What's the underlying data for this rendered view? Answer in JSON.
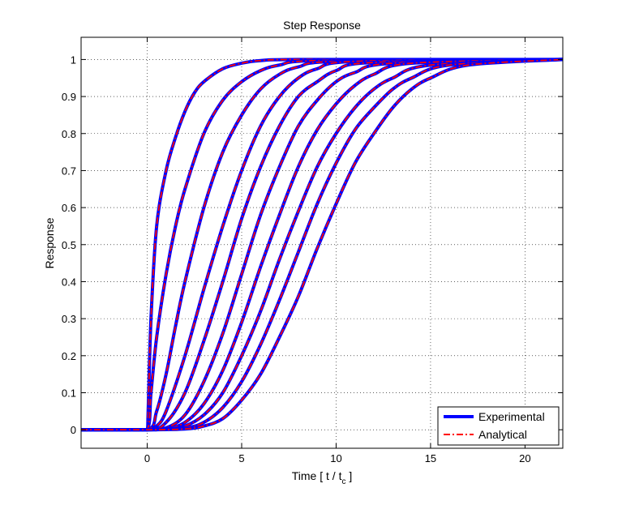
{
  "chart_data": {
    "type": "line",
    "title": "Step Response",
    "xlabel": "Time  [ t / t",
    "xlabel_sub": "c",
    "xlabel_end": " ]",
    "ylabel": "Response",
    "xlim": [
      -3.5,
      22
    ],
    "ylim": [
      -0.05,
      1.06
    ],
    "xticks": [
      0,
      5,
      10,
      15,
      20
    ],
    "yticks": [
      0,
      0.1,
      0.2,
      0.3,
      0.4,
      0.5,
      0.6,
      0.7,
      0.8,
      0.9,
      1
    ],
    "grid": true,
    "legend_position": "bottom-right",
    "colors": {
      "experimental": "#0000ff",
      "analytical": "#ff0000"
    },
    "series": [
      {
        "name": "Experimental",
        "style": "solid"
      },
      {
        "name": "Analytical",
        "style": "dash-dot"
      }
    ],
    "curves": [
      {
        "x": [
          -3.5,
          0,
          0.05,
          0.2,
          0.5,
          1,
          1.5,
          2,
          2.5,
          3,
          4,
          5,
          6,
          8,
          22
        ],
        "y": [
          0,
          0,
          0.05,
          0.3,
          0.55,
          0.7,
          0.79,
          0.86,
          0.91,
          0.94,
          0.975,
          0.99,
          0.997,
          1,
          1
        ]
      },
      {
        "x": [
          -3.5,
          0,
          0.2,
          0.5,
          1,
          1.5,
          2,
          3,
          4,
          5,
          6,
          7,
          9,
          22
        ],
        "y": [
          0,
          0,
          0.1,
          0.25,
          0.42,
          0.55,
          0.65,
          0.8,
          0.89,
          0.94,
          0.97,
          0.985,
          0.997,
          1
        ]
      },
      {
        "x": [
          -3.5,
          0,
          0.5,
          1,
          1.5,
          2,
          3,
          4,
          5,
          6,
          7,
          8,
          10,
          22
        ],
        "y": [
          0,
          0,
          0.05,
          0.15,
          0.28,
          0.4,
          0.6,
          0.75,
          0.85,
          0.92,
          0.96,
          0.98,
          0.995,
          1
        ]
      },
      {
        "x": [
          -3.5,
          0,
          0.5,
          1,
          2,
          3,
          4,
          5,
          6,
          7,
          8,
          9,
          11,
          22
        ],
        "y": [
          0,
          0,
          0.01,
          0.05,
          0.2,
          0.38,
          0.55,
          0.7,
          0.82,
          0.9,
          0.95,
          0.975,
          0.995,
          1
        ]
      },
      {
        "x": [
          -3.5,
          0,
          1,
          2,
          3,
          4,
          5,
          6,
          7,
          8,
          9,
          10,
          12,
          22
        ],
        "y": [
          0,
          0,
          0.02,
          0.1,
          0.24,
          0.4,
          0.57,
          0.71,
          0.82,
          0.9,
          0.94,
          0.97,
          0.992,
          1
        ]
      },
      {
        "x": [
          -3.5,
          0,
          1,
          2,
          3,
          4,
          5,
          6,
          7,
          8,
          9,
          10,
          11,
          13,
          22
        ],
        "y": [
          0,
          0,
          0.005,
          0.04,
          0.13,
          0.26,
          0.42,
          0.58,
          0.71,
          0.82,
          0.89,
          0.94,
          0.965,
          0.99,
          1
        ]
      },
      {
        "x": [
          -3.5,
          0,
          1,
          2,
          3,
          4,
          5,
          6,
          7,
          8,
          9,
          10,
          11,
          12,
          14,
          22
        ],
        "y": [
          0,
          0,
          0.002,
          0.02,
          0.07,
          0.16,
          0.29,
          0.44,
          0.58,
          0.71,
          0.81,
          0.88,
          0.93,
          0.96,
          0.99,
          1
        ]
      },
      {
        "x": [
          -3.5,
          0,
          1,
          2,
          3,
          4,
          5,
          6,
          7,
          8,
          9,
          10,
          11,
          12,
          13,
          15,
          22
        ],
        "y": [
          0,
          0,
          0.001,
          0.01,
          0.04,
          0.1,
          0.2,
          0.32,
          0.46,
          0.59,
          0.71,
          0.8,
          0.87,
          0.92,
          0.95,
          0.985,
          1
        ]
      },
      {
        "x": [
          -3.5,
          0,
          2,
          3,
          4,
          5,
          6,
          7,
          8,
          9,
          10,
          11,
          12,
          13,
          14,
          16,
          22
        ],
        "y": [
          0,
          0,
          0.005,
          0.02,
          0.06,
          0.13,
          0.23,
          0.35,
          0.48,
          0.61,
          0.72,
          0.81,
          0.87,
          0.92,
          0.95,
          0.985,
          1
        ]
      },
      {
        "x": [
          -3.5,
          0,
          2,
          3,
          4,
          5,
          6,
          7,
          8,
          9,
          10,
          11,
          12,
          13,
          14,
          15,
          17,
          22
        ],
        "y": [
          0,
          0,
          0.002,
          0.01,
          0.03,
          0.08,
          0.15,
          0.25,
          0.36,
          0.49,
          0.61,
          0.72,
          0.8,
          0.87,
          0.92,
          0.95,
          0.985,
          1
        ]
      }
    ]
  }
}
